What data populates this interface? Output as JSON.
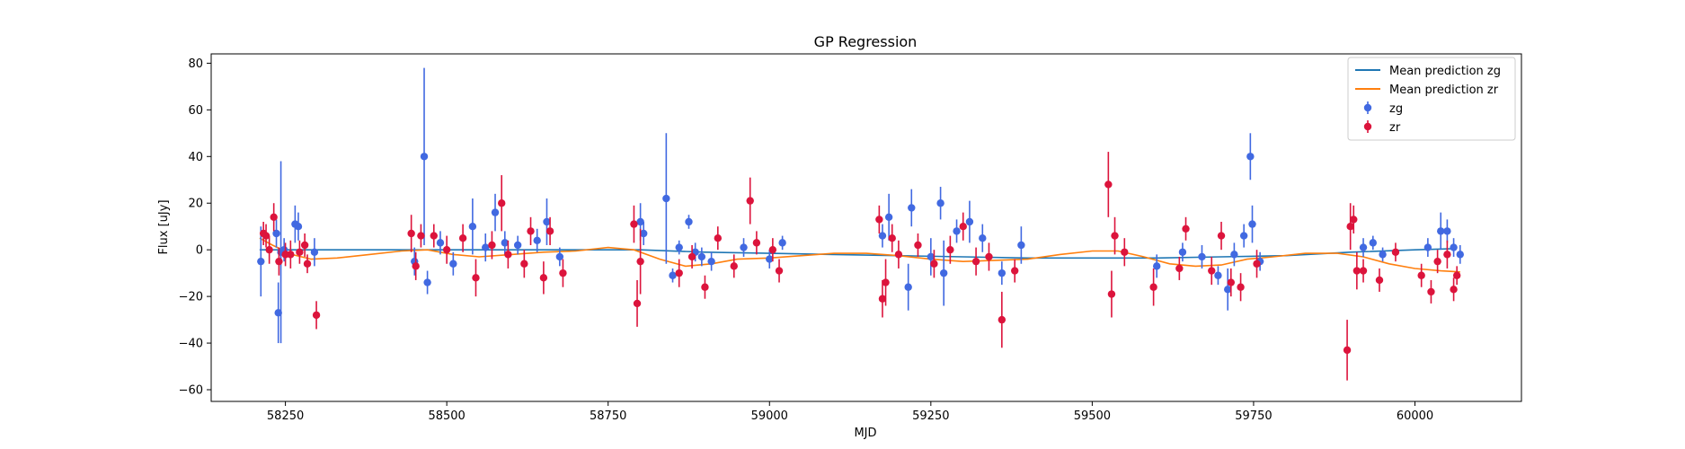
{
  "chart_data": {
    "type": "scatter",
    "title": "GP Regression",
    "xlabel": "MJD",
    "ylabel": "Flux [uJy]",
    "xlim": [
      58135,
      60165
    ],
    "ylim": [
      -65,
      84
    ],
    "xticks": [
      58250,
      58500,
      58750,
      59000,
      59250,
      59500,
      59750,
      60000
    ],
    "yticks": [
      -60,
      -40,
      -20,
      0,
      20,
      40,
      60,
      80
    ],
    "legend_position": "top-right",
    "colors": {
      "zg_line": "#1f77b4",
      "zr_line": "#ff7f0e",
      "zg_points": "#4169e1",
      "zr_points": "#dc143c"
    },
    "legend": [
      {
        "label": "Mean prediction zg",
        "kind": "line",
        "color": "#1f77b4"
      },
      {
        "label": "Mean prediction zr",
        "kind": "line",
        "color": "#ff7f0e"
      },
      {
        "label": "zg",
        "kind": "errorbar",
        "color": "#4169e1"
      },
      {
        "label": "zr",
        "kind": "errorbar",
        "color": "#dc143c"
      }
    ],
    "lines": [
      {
        "name": "Mean prediction zg",
        "color": "#1f77b4",
        "x": [
          58210,
          58250,
          58300,
          58400,
          58500,
          58600,
          58700,
          58800,
          58900,
          59000,
          59100,
          59200,
          59300,
          59400,
          59500,
          59600,
          59700,
          59800,
          59900,
          60000,
          60060
        ],
        "y": [
          0,
          0,
          0,
          0,
          0,
          0,
          0,
          0,
          -1,
          -1.5,
          -2,
          -2.5,
          -3,
          -3.5,
          -3.5,
          -3.5,
          -3,
          -2.5,
          -1,
          0,
          0.5
        ]
      },
      {
        "name": "Mean prediction zr",
        "color": "#ff7f0e",
        "x": [
          58210,
          58230,
          58260,
          58290,
          58330,
          58380,
          58430,
          58470,
          58510,
          58550,
          58600,
          58650,
          58700,
          58750,
          58790,
          58830,
          58870,
          58910,
          58950,
          59000,
          59050,
          59100,
          59150,
          59200,
          59250,
          59300,
          59350,
          59400,
          59450,
          59500,
          59540,
          59580,
          59620,
          59660,
          59700,
          59740,
          59780,
          59830,
          59880,
          59920,
          59960,
          60000,
          60040,
          60070
        ],
        "y": [
          5,
          2,
          -2,
          -4,
          -3.5,
          -2,
          -0.5,
          0,
          -2,
          -3,
          -2,
          -1,
          -0.5,
          1,
          0,
          -4,
          -7,
          -6,
          -4,
          -3.5,
          -2.5,
          -1.5,
          -1.5,
          -2.5,
          -4,
          -5,
          -4.5,
          -4,
          -2,
          -0.5,
          -0.5,
          -3,
          -6,
          -7,
          -6.5,
          -4,
          -3,
          -1.5,
          -1.5,
          -3,
          -6,
          -8,
          -9,
          -9.5
        ]
      }
    ],
    "series": [
      {
        "name": "zg",
        "color": "#4169e1",
        "points": [
          [
            58212,
            -5,
            15
          ],
          [
            58236,
            7,
            6
          ],
          [
            58239,
            -27,
            13
          ],
          [
            58243,
            -1,
            39
          ],
          [
            58248,
            0,
            5
          ],
          [
            58265,
            11,
            8
          ],
          [
            58270,
            10,
            6
          ],
          [
            58295,
            -1,
            6
          ],
          [
            58450,
            -5,
            6
          ],
          [
            58465,
            40,
            38
          ],
          [
            58470,
            -14,
            5
          ],
          [
            58490,
            3,
            5
          ],
          [
            58510,
            -6,
            5
          ],
          [
            58540,
            10,
            12
          ],
          [
            58560,
            1,
            6
          ],
          [
            58575,
            16,
            8
          ],
          [
            58590,
            3,
            5
          ],
          [
            58610,
            2,
            4
          ],
          [
            58640,
            4,
            5
          ],
          [
            58655,
            12,
            10
          ],
          [
            58675,
            -3,
            4
          ],
          [
            58800,
            12,
            8
          ],
          [
            58805,
            7,
            5
          ],
          [
            58840,
            22,
            28
          ],
          [
            58850,
            -11,
            3
          ],
          [
            58860,
            1,
            3
          ],
          [
            58875,
            12,
            3
          ],
          [
            58885,
            -1,
            4
          ],
          [
            58895,
            -3,
            4
          ],
          [
            58910,
            -5,
            4
          ],
          [
            58960,
            1,
            4
          ],
          [
            59000,
            -4,
            4
          ],
          [
            59020,
            3,
            3
          ],
          [
            59175,
            6,
            5
          ],
          [
            59185,
            14,
            10
          ],
          [
            59215,
            -16,
            10
          ],
          [
            59220,
            18,
            8
          ],
          [
            59250,
            -3,
            8
          ],
          [
            59265,
            20,
            7
          ],
          [
            59270,
            -10,
            14
          ],
          [
            59290,
            8,
            5
          ],
          [
            59310,
            12,
            9
          ],
          [
            59330,
            5,
            6
          ],
          [
            59360,
            -10,
            5
          ],
          [
            59390,
            2,
            8
          ],
          [
            59600,
            -7,
            5
          ],
          [
            59640,
            -1,
            4
          ],
          [
            59670,
            -3,
            5
          ],
          [
            59695,
            -11,
            4
          ],
          [
            59710,
            -17,
            9
          ],
          [
            59720,
            -2,
            5
          ],
          [
            59735,
            6,
            5
          ],
          [
            59745,
            40,
            10
          ],
          [
            59748,
            11,
            8
          ],
          [
            59760,
            -5,
            4
          ],
          [
            59920,
            1,
            4
          ],
          [
            59935,
            3,
            3
          ],
          [
            59950,
            -2,
            3
          ],
          [
            60020,
            1,
            4
          ],
          [
            60040,
            8,
            8
          ],
          [
            60050,
            8,
            5
          ],
          [
            60060,
            1,
            4
          ],
          [
            60070,
            -2,
            4
          ]
        ]
      },
      {
        "name": "zr",
        "color": "#dc143c",
        "points": [
          [
            58216,
            7,
            5
          ],
          [
            58220,
            6,
            5
          ],
          [
            58225,
            0,
            6
          ],
          [
            58232,
            14,
            6
          ],
          [
            58240,
            -5,
            6
          ],
          [
            58250,
            -2,
            5
          ],
          [
            58258,
            -2,
            6
          ],
          [
            58272,
            -1,
            5
          ],
          [
            58280,
            2,
            5
          ],
          [
            58284,
            -6,
            4
          ],
          [
            58298,
            -28,
            6
          ],
          [
            58445,
            7,
            8
          ],
          [
            58452,
            -7,
            6
          ],
          [
            58460,
            6,
            5
          ],
          [
            58480,
            6,
            5
          ],
          [
            58500,
            0,
            6
          ],
          [
            58525,
            5,
            6
          ],
          [
            58545,
            -12,
            8
          ],
          [
            58570,
            2,
            6
          ],
          [
            58585,
            20,
            12
          ],
          [
            58595,
            -2,
            6
          ],
          [
            58620,
            -6,
            6
          ],
          [
            58630,
            8,
            6
          ],
          [
            58650,
            -12,
            7
          ],
          [
            58660,
            8,
            6
          ],
          [
            58680,
            -10,
            6
          ],
          [
            58790,
            11,
            8
          ],
          [
            58795,
            -23,
            10
          ],
          [
            58800,
            -5,
            14
          ],
          [
            58860,
            -10,
            6
          ],
          [
            58880,
            -3,
            5
          ],
          [
            58900,
            -16,
            5
          ],
          [
            58920,
            5,
            5
          ],
          [
            58945,
            -7,
            5
          ],
          [
            58970,
            21,
            10
          ],
          [
            58980,
            3,
            5
          ],
          [
            59005,
            0,
            5
          ],
          [
            59015,
            -9,
            5
          ],
          [
            59170,
            13,
            6
          ],
          [
            59175,
            -21,
            8
          ],
          [
            59180,
            -14,
            10
          ],
          [
            59190,
            5,
            6
          ],
          [
            59200,
            -2,
            6
          ],
          [
            59230,
            2,
            5
          ],
          [
            59255,
            -6,
            6
          ],
          [
            59280,
            0,
            6
          ],
          [
            59300,
            10,
            6
          ],
          [
            59320,
            -5,
            6
          ],
          [
            59340,
            -3,
            6
          ],
          [
            59360,
            -30,
            12
          ],
          [
            59380,
            -9,
            5
          ],
          [
            59525,
            28,
            14
          ],
          [
            59530,
            -19,
            10
          ],
          [
            59535,
            6,
            8
          ],
          [
            59550,
            -1,
            6
          ],
          [
            59595,
            -16,
            8
          ],
          [
            59635,
            -8,
            5
          ],
          [
            59645,
            9,
            5
          ],
          [
            59685,
            -9,
            6
          ],
          [
            59700,
            6,
            6
          ],
          [
            59715,
            -14,
            6
          ],
          [
            59730,
            -16,
            6
          ],
          [
            59755,
            -6,
            6
          ],
          [
            59895,
            -43,
            13
          ],
          [
            59900,
            10,
            10
          ],
          [
            59905,
            13,
            6
          ],
          [
            59910,
            -9,
            8
          ],
          [
            59920,
            -9,
            5
          ],
          [
            59945,
            -13,
            5
          ],
          [
            59970,
            -1,
            4
          ],
          [
            60010,
            -11,
            5
          ],
          [
            60025,
            -18,
            5
          ],
          [
            60035,
            -5,
            5
          ],
          [
            60050,
            -2,
            6
          ],
          [
            60060,
            -17,
            5
          ],
          [
            60065,
            -11,
            4
          ]
        ]
      }
    ]
  }
}
